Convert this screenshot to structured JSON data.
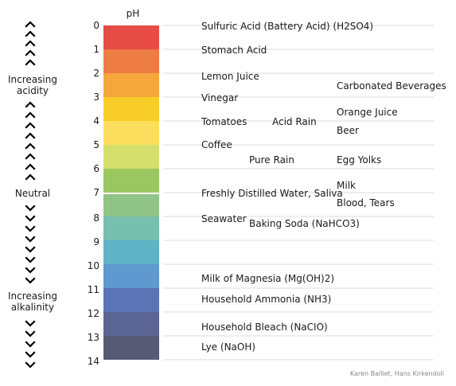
{
  "scale_header": "pH",
  "scale": [
    {
      "value": "0",
      "color": "#E64B45"
    },
    {
      "value": "1",
      "color": "#EE7D44"
    },
    {
      "value": "2",
      "color": "#F5A73B"
    },
    {
      "value": "3",
      "color": "#F9CD29"
    },
    {
      "value": "4",
      "color": "#FCDE5E"
    },
    {
      "value": "5",
      "color": "#D5DF6C"
    },
    {
      "value": "6",
      "color": "#9BC760"
    },
    {
      "value": "7",
      "color": "#90C487"
    },
    {
      "value": "8",
      "color": "#76C0B0"
    },
    {
      "value": "9",
      "color": "#5EB3C6"
    },
    {
      "value": "10",
      "color": "#5F99CF"
    },
    {
      "value": "11",
      "color": "#5A74B5"
    },
    {
      "value": "12",
      "color": "#5B6593"
    },
    {
      "value": "13",
      "color": "#575A75"
    },
    {
      "value": "14",
      "color": ""
    }
  ],
  "side_labels": {
    "acidity": [
      "Increasing",
      "acidity"
    ],
    "neutral": "Neutral",
    "alkalinity": [
      "Increasing",
      "alkalinity"
    ]
  },
  "substances": [
    "Sulfuric Acid (Battery Acid) (H2SO4)",
    "Stomach Acid",
    "Lemon Juice",
    "Carbonated Beverages",
    "Vinegar",
    "Orange Juice",
    "Tomatoes",
    "Acid Rain",
    "Beer",
    "Coffee",
    "Pure Rain",
    "Egg Yolks",
    "Milk",
    "Freshly Distilled Water, Saliva",
    "Blood, Tears",
    "Seawater",
    "Baking Soda (NaHCO3)",
    "Milk of Magnesia (Mg(OH)2)",
    "Household Ammonia (NH3)",
    "Household Bleach (NaCIO)",
    "Lye (NaOH)"
  ],
  "credit": "Karen Balliet, Hans Kirkendoll"
}
